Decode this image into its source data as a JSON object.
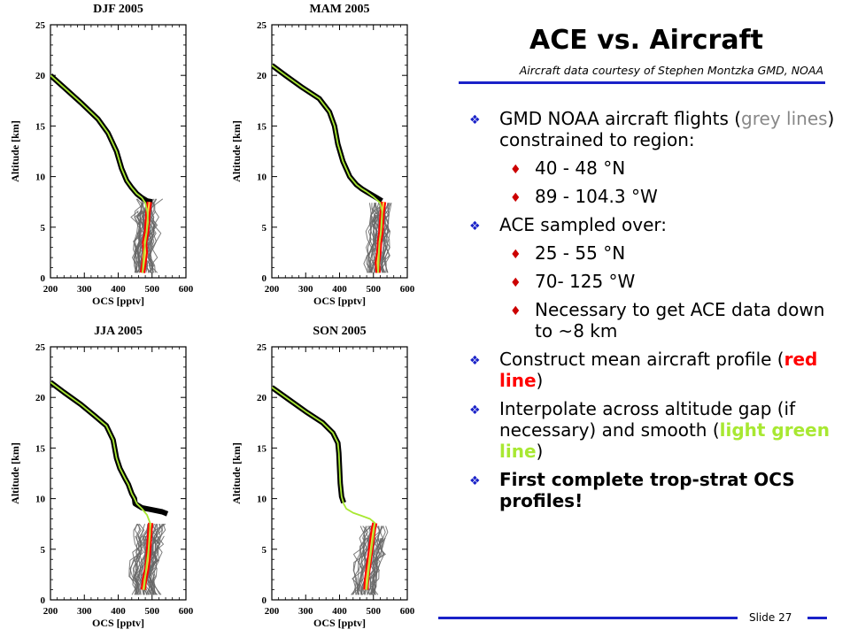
{
  "title": "ACE vs. Aircraft",
  "subtitle": "Aircraft data courtesy of Stephen Montzka GMD, NOAA",
  "slide_number": "Slide 27",
  "bullets": [
    {
      "level": 1,
      "segments": [
        {
          "text": "GMD NOAA aircraft flights ("
        },
        {
          "text": "grey lines",
          "style": "grey"
        },
        {
          "text": ") constrained to region:"
        }
      ]
    },
    {
      "level": 2,
      "segments": [
        {
          "text": "40 - 48 °N"
        }
      ]
    },
    {
      "level": 2,
      "segments": [
        {
          "text": "89 - 104.3 °W"
        }
      ]
    },
    {
      "level": 1,
      "segments": [
        {
          "text": "ACE sampled over:"
        }
      ]
    },
    {
      "level": 2,
      "segments": [
        {
          "text": "25 - 55 °N"
        }
      ]
    },
    {
      "level": 2,
      "segments": [
        {
          "text": "70- 125 °W"
        }
      ]
    },
    {
      "level": 2,
      "segments": [
        {
          "text": "Necessary to get ACE data down to ~8 km"
        }
      ]
    },
    {
      "level": 1,
      "segments": [
        {
          "text": "Construct mean aircraft profile ("
        },
        {
          "text": "red line",
          "style": "red"
        },
        {
          "text": ")"
        }
      ]
    },
    {
      "level": 1,
      "segments": [
        {
          "text": "Interpolate across altitude gap (if necessary) and smooth ("
        },
        {
          "text": "light green line",
          "style": "green"
        },
        {
          "text": ")"
        }
      ]
    },
    {
      "level": 1,
      "bold": true,
      "segments": [
        {
          "text": "First complete trop-strat OCS profiles!"
        }
      ]
    }
  ],
  "colors": {
    "accent": "#1a22c8",
    "aircraft": "#666666",
    "ace": "#000000",
    "mean": "#ff0000",
    "smooth": "#a8e832",
    "mean_core": "#ffd23c"
  },
  "chart_data": [
    {
      "type": "line",
      "title": "DJF 2005",
      "xlabel": "OCS [pptv]",
      "ylabel": "Altitude [km]",
      "xlim": [
        200,
        600
      ],
      "ylim": [
        0,
        25
      ],
      "xticks": [
        200,
        300,
        400,
        500,
        600
      ],
      "yticks": [
        0,
        5,
        10,
        15,
        20,
        25
      ],
      "series": [
        {
          "role": "ace",
          "x": [
            200,
            240,
            290,
            340,
            370,
            395,
            410,
            425,
            440,
            455,
            470,
            485,
            500
          ],
          "y": [
            20,
            18.8,
            17.3,
            15.7,
            14.3,
            12.5,
            10.8,
            9.6,
            8.9,
            8.3,
            7.9,
            7.6,
            7.5
          ]
        },
        {
          "role": "aircraft",
          "x_center": [
            480,
            478,
            476,
            474,
            480,
            486,
            484,
            480,
            482,
            486,
            488
          ],
          "y": [
            0.5,
            1.2,
            2,
            2.8,
            3.6,
            4.4,
            5.2,
            6,
            6.6,
            7.2,
            7.8
          ],
          "spread": 34,
          "count": 34
        },
        {
          "role": "mean",
          "x": [
            472,
            476,
            480,
            478,
            484,
            486,
            488,
            492
          ],
          "y": [
            0.5,
            1.5,
            2.5,
            3.5,
            4.5,
            5.5,
            6.5,
            7.5
          ]
        },
        {
          "role": "smooth",
          "x": [
            200,
            240,
            290,
            340,
            370,
            395,
            410,
            425,
            440,
            455,
            470,
            480,
            486,
            488,
            484,
            480,
            476,
            472
          ],
          "y": [
            20,
            18.8,
            17.3,
            15.7,
            14.3,
            12.5,
            10.8,
            9.6,
            8.9,
            8.3,
            7.9,
            7.4,
            6.5,
            5.5,
            4.5,
            3.5,
            2.5,
            0.5
          ]
        }
      ]
    },
    {
      "type": "line",
      "title": "MAM 2005",
      "xlabel": "OCS [pptv]",
      "ylabel": "Altitude [km]",
      "xlim": [
        200,
        600
      ],
      "ylim": [
        0,
        25
      ],
      "xticks": [
        200,
        300,
        400,
        500,
        600
      ],
      "yticks": [
        0,
        5,
        10,
        15,
        20,
        25
      ],
      "series": [
        {
          "role": "ace",
          "x": [
            200,
            240,
            290,
            340,
            370,
            385,
            395,
            410,
            430,
            450,
            465,
            480,
            495,
            510,
            525
          ],
          "y": [
            21,
            20,
            18.8,
            17.7,
            16.4,
            15,
            13.2,
            11.5,
            10,
            9.2,
            8.8,
            8.5,
            8.2,
            7.9,
            7.6
          ]
        },
        {
          "role": "aircraft",
          "x_center": [
            510,
            508,
            512,
            514,
            518,
            520,
            516,
            520,
            524,
            526
          ],
          "y": [
            0.5,
            1.4,
            2.2,
            3,
            3.8,
            4.6,
            5.4,
            6.2,
            6.8,
            7.4
          ],
          "spread": 32,
          "count": 32
        },
        {
          "role": "mean",
          "x": [
            514,
            512,
            516,
            518,
            522,
            524,
            526,
            530
          ],
          "y": [
            0.5,
            1.5,
            2.5,
            3.5,
            4.5,
            5.5,
            6.5,
            7.5
          ]
        },
        {
          "role": "smooth",
          "x": [
            200,
            240,
            290,
            340,
            370,
            385,
            395,
            410,
            430,
            450,
            465,
            480,
            500,
            520,
            526,
            524,
            518,
            514
          ],
          "y": [
            21,
            20,
            18.8,
            17.7,
            16.4,
            15,
            13.2,
            11.5,
            10,
            9.2,
            8.8,
            8.5,
            8,
            7.4,
            6.5,
            5,
            3.5,
            0.5
          ]
        }
      ]
    },
    {
      "type": "line",
      "title": "JJA 2005",
      "xlabel": "OCS [pptv]",
      "ylabel": "Altitude [km]",
      "xlim": [
        200,
        600
      ],
      "ylim": [
        0,
        25
      ],
      "xticks": [
        200,
        300,
        400,
        500,
        600
      ],
      "yticks": [
        0,
        5,
        10,
        15,
        20,
        25
      ],
      "series": [
        {
          "role": "ace",
          "x": [
            200,
            240,
            290,
            330,
            365,
            385,
            395,
            405,
            420,
            430,
            440,
            448,
            450,
            470,
            500,
            530,
            545
          ],
          "y": [
            21.5,
            20.5,
            19.3,
            18.2,
            17.2,
            15.8,
            14,
            13,
            12,
            11.4,
            10.5,
            10,
            9.5,
            9.1,
            8.9,
            8.7,
            8.5
          ]
        },
        {
          "role": "aircraft",
          "x_center": [
            480,
            474,
            470,
            476,
            482,
            484,
            486,
            488,
            492,
            496
          ],
          "y": [
            0.5,
            1.5,
            2.3,
            3.1,
            3.9,
            4.7,
            5.5,
            6.3,
            6.9,
            7.5
          ],
          "spread": 40,
          "count": 40
        },
        {
          "role": "mean",
          "x": [
            474,
            478,
            484,
            488,
            490,
            492,
            494,
            496
          ],
          "y": [
            1,
            2,
            3,
            4,
            5,
            6,
            7,
            7.6
          ]
        },
        {
          "role": "smooth",
          "x": [
            200,
            240,
            290,
            330,
            365,
            385,
            395,
            405,
            420,
            430,
            440,
            448,
            455,
            470,
            485,
            494,
            494,
            490,
            484,
            476
          ],
          "y": [
            21.5,
            20.5,
            19.3,
            18.2,
            17.2,
            15.8,
            14,
            13,
            12,
            11.4,
            10.5,
            10,
            9.5,
            9,
            8.4,
            7.6,
            6.5,
            5,
            3.5,
            1
          ]
        }
      ]
    },
    {
      "type": "line",
      "title": "SON 2005",
      "xlabel": "OCS [pptv]",
      "ylabel": "Altitude [km]",
      "xlim": [
        200,
        600
      ],
      "ylim": [
        0,
        25
      ],
      "xticks": [
        200,
        300,
        400,
        500,
        600
      ],
      "yticks": [
        0,
        5,
        10,
        15,
        20,
        25
      ],
      "series": [
        {
          "role": "ace",
          "x": [
            200,
            250,
            300,
            350,
            380,
            395,
            398,
            400,
            402,
            406,
            412
          ],
          "y": [
            21,
            19.8,
            18.6,
            17.5,
            16.5,
            15.5,
            14.5,
            13,
            11.5,
            10.2,
            9.6
          ]
        },
        {
          "role": "aircraft",
          "x_center": [
            470,
            472,
            476,
            480,
            484,
            488,
            492,
            494,
            498,
            500
          ],
          "y": [
            0.5,
            1.3,
            2.1,
            2.9,
            3.7,
            4.5,
            5.3,
            6.1,
            6.7,
            7.3
          ],
          "spread": 34,
          "count": 36
        },
        {
          "role": "mean",
          "x": [
            478,
            480,
            484,
            488,
            492,
            496,
            500,
            504
          ],
          "y": [
            1,
            2,
            3,
            4,
            5,
            6,
            7,
            7.6
          ]
        },
        {
          "role": "smooth",
          "x": [
            200,
            250,
            300,
            350,
            380,
            395,
            398,
            400,
            402,
            406,
            412,
            420,
            440,
            465,
            490,
            504,
            500,
            494,
            488,
            480
          ],
          "y": [
            21,
            19.8,
            18.6,
            17.5,
            16.5,
            15.5,
            14.5,
            13,
            11.5,
            10.2,
            9.5,
            9,
            8.6,
            8.3,
            8,
            7.6,
            6.5,
            5,
            3.5,
            1
          ]
        }
      ]
    }
  ]
}
